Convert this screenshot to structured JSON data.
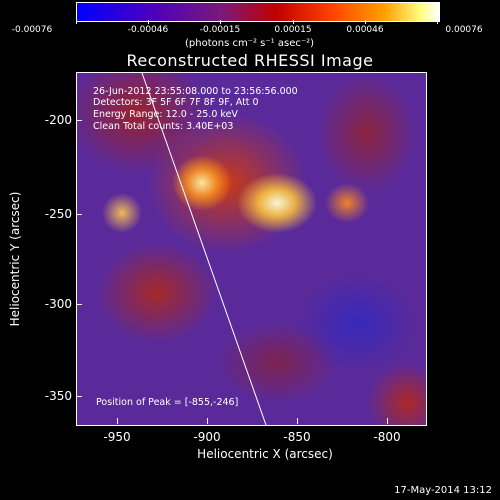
{
  "colorbar": {
    "ticks": [
      "-0.00076",
      "-0.00046",
      "-0.00015",
      "0.00015",
      "0.00046",
      "0.00076"
    ],
    "units": "(photons cm⁻² s⁻¹ asec⁻²)"
  },
  "title": "Reconstructed RHESSI Image",
  "info": {
    "time": "26-Jun-2012 23:55:08.000 to 23:56:56.000",
    "detectors": "Detectors: 3F 5F 6F 7F 8F 9F, Att 0",
    "energy": "Energy Range: 12.0 - 25.0 keV",
    "clean": "Clean    Total counts: 3.40E+03",
    "peak": "Position of Peak = [-855,-246]"
  },
  "axes": {
    "ylabel": "Heliocentric Y (arcsec)",
    "xlabel": "Heliocentric X (arcsec)",
    "yticks": [
      "-200",
      "-250",
      "-300",
      "-350"
    ],
    "xticks": [
      "-950",
      "-900",
      "-850",
      "-800"
    ]
  },
  "footer": {
    "date": "17-May-2014 13:12"
  }
}
